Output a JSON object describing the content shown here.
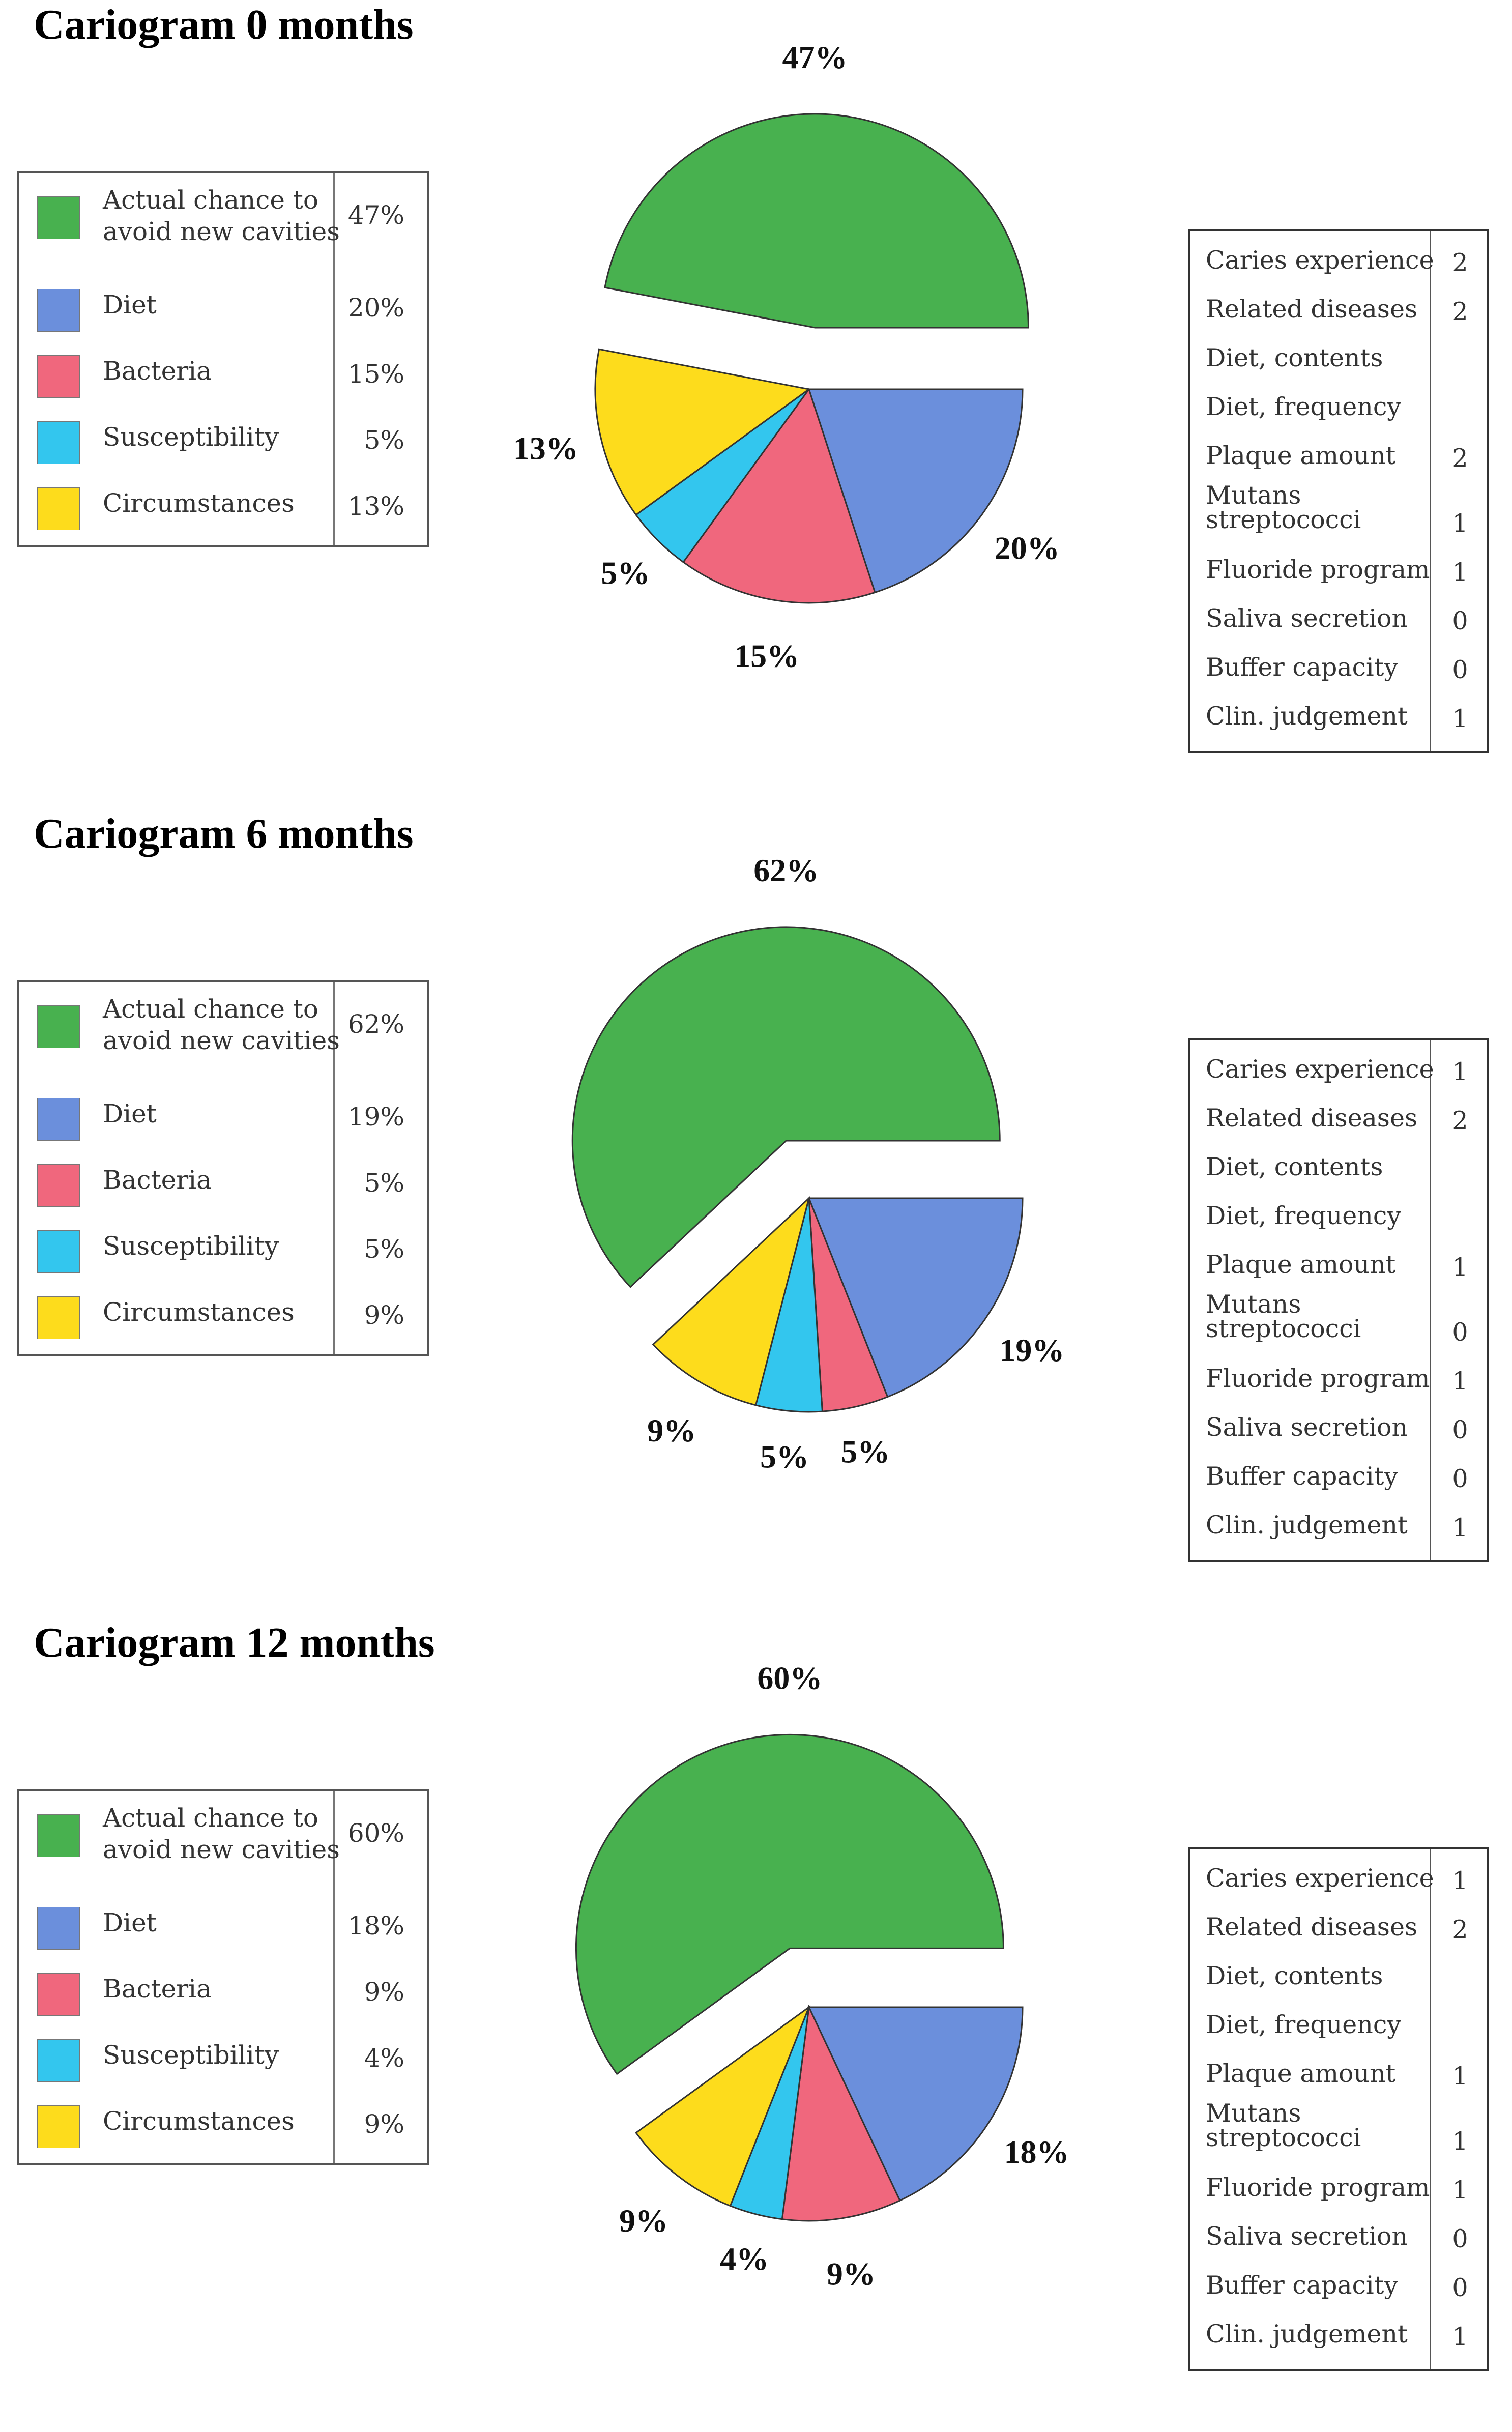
{
  "colors": {
    "actual": "#48b14f",
    "diet": "#6b8fdc",
    "bacteria": "#f0677d",
    "susceptibility": "#33c6ee",
    "circumstances": "#fddc1c"
  },
  "legend_labels": {
    "actual": [
      "Actual chance to",
      "avoid new cavities"
    ],
    "diet": "Diet",
    "bacteria": "Bacteria",
    "susceptibility": "Susceptibility",
    "circumstances": "Circumstances"
  },
  "factor_labels": [
    "Caries experience",
    "Related diseases",
    "Diet, contents",
    "Diet, frequency",
    "Plaque amount",
    [
      "Mutans",
      "streptococci"
    ],
    "Fluoride program",
    "Saliva secretion",
    "Buffer capacity",
    "Clin. judgement"
  ],
  "chart_data": [
    {
      "type": "pie",
      "title": "Cariogram 0 months",
      "slices": [
        {
          "key": "actual",
          "value": 47,
          "label": "47%"
        },
        {
          "key": "diet",
          "value": 20,
          "label": "20%"
        },
        {
          "key": "bacteria",
          "value": 15,
          "label": "15%"
        },
        {
          "key": "susceptibility",
          "value": 5,
          "label": "5%"
        },
        {
          "key": "circumstances",
          "value": 13,
          "label": "13%"
        }
      ],
      "factor_values": [
        "2",
        "2",
        "",
        "",
        "2",
        "1",
        "1",
        "0",
        "0",
        "1"
      ]
    },
    {
      "type": "pie",
      "title": "Cariogram 6 months",
      "slices": [
        {
          "key": "actual",
          "value": 62,
          "label": "62%"
        },
        {
          "key": "diet",
          "value": 19,
          "label": "19%"
        },
        {
          "key": "bacteria",
          "value": 5,
          "label": "5%"
        },
        {
          "key": "susceptibility",
          "value": 5,
          "label": "5%"
        },
        {
          "key": "circumstances",
          "value": 9,
          "label": "9%"
        }
      ],
      "factor_values": [
        "1",
        "2",
        "",
        "",
        "1",
        "0",
        "1",
        "0",
        "0",
        "1"
      ]
    },
    {
      "type": "pie",
      "title": "Cariogram 12 months",
      "slices": [
        {
          "key": "actual",
          "value": 60,
          "label": "60%"
        },
        {
          "key": "diet",
          "value": 18,
          "label": "18%"
        },
        {
          "key": "bacteria",
          "value": 9,
          "label": "9%"
        },
        {
          "key": "susceptibility",
          "value": 4,
          "label": "4%"
        },
        {
          "key": "circumstances",
          "value": 9,
          "label": "9%"
        }
      ],
      "factor_values": [
        "1",
        "2",
        "",
        "",
        "1",
        "1",
        "1",
        "0",
        "0",
        "1"
      ]
    }
  ]
}
